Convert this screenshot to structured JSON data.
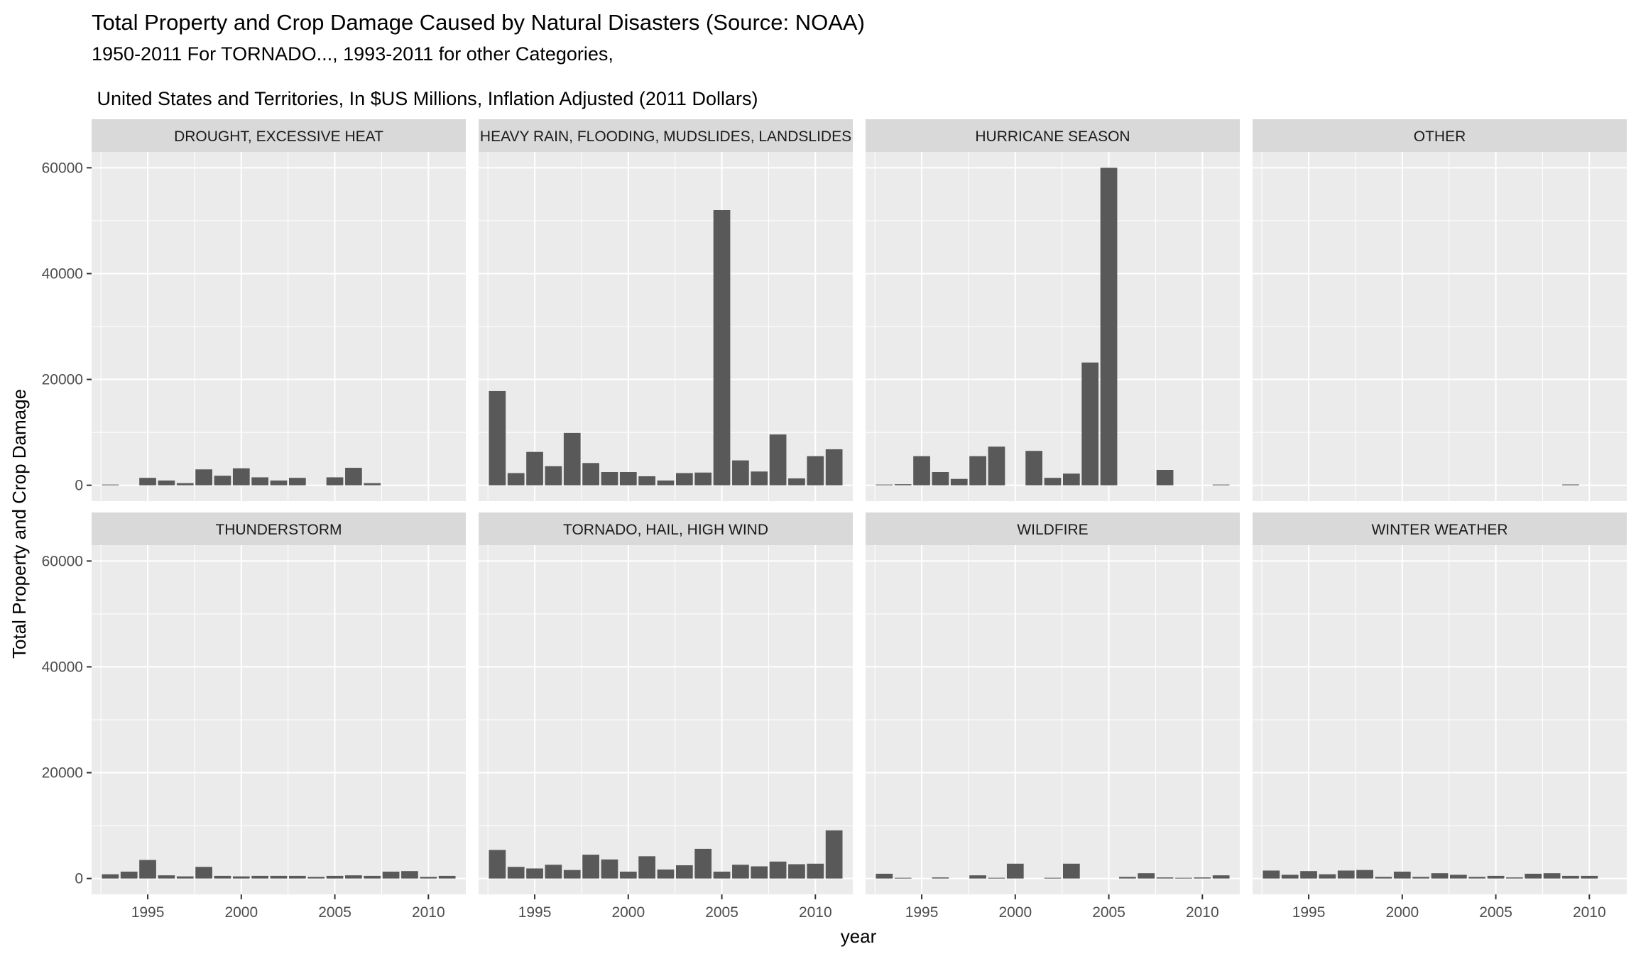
{
  "title": "Total Property and Crop Damage Caused by Natural Disasters (Source: NOAA)",
  "subtitle_line1": "1950-2011 For TORNADO..., 1993-2011 for other Categories,",
  "subtitle_line2": " United States and Territories, In $US Millions, Inflation Adjusted (2011 Dollars)",
  "colors": {
    "panel_bg": "#ebebeb",
    "strip_bg": "#d9d9d9",
    "grid": "#ffffff",
    "bar": "#595959",
    "text": "#000000",
    "tick_text": "#4d4d4d"
  },
  "chart_data": {
    "type": "bar",
    "facet_layout": "4 columns x 2 rows",
    "xlabel": "year",
    "ylabel": "Total Property and Crop Damage",
    "xlim": [
      1992,
      2012
    ],
    "ylim": [
      -3000,
      63000
    ],
    "x_ticks": [
      1995,
      2000,
      2005,
      2010
    ],
    "y_ticks": [
      0,
      20000,
      40000,
      60000
    ],
    "grid": true,
    "legend": "none",
    "years": [
      1993,
      1994,
      1995,
      1996,
      1997,
      1998,
      1999,
      2000,
      2001,
      2002,
      2003,
      2004,
      2005,
      2006,
      2007,
      2008,
      2009,
      2010,
      2011
    ],
    "panels": [
      {
        "label": "DROUGHT, EXCESSIVE HEAT",
        "values": [
          100,
          0,
          1400,
          900,
          400,
          3000,
          1800,
          3200,
          1500,
          900,
          1400,
          0,
          1500,
          3300,
          400,
          0,
          0,
          0,
          0
        ]
      },
      {
        "label": "HEAVY RAIN, FLOODING, MUDSLIDES, LANDSLIDES",
        "values": [
          17800,
          2300,
          6300,
          3600,
          9900,
          4200,
          2500,
          2500,
          1700,
          900,
          2300,
          2400,
          52000,
          4700,
          2600,
          9600,
          1300,
          5500,
          6800
        ]
      },
      {
        "label": "HURRICANE SEASON",
        "values": [
          100,
          200,
          5500,
          2500,
          1200,
          5500,
          7300,
          0,
          6500,
          1400,
          2200,
          23200,
          60000,
          0,
          0,
          2900,
          0,
          0,
          100
        ]
      },
      {
        "label": "OTHER",
        "values": [
          0,
          0,
          0,
          0,
          0,
          0,
          0,
          0,
          0,
          0,
          0,
          0,
          0,
          0,
          0,
          0,
          150,
          0,
          0
        ]
      },
      {
        "label": "THUNDERSTORM",
        "values": [
          800,
          1300,
          3500,
          600,
          400,
          2200,
          500,
          400,
          500,
          500,
          500,
          300,
          500,
          600,
          500,
          1300,
          1400,
          300,
          500
        ]
      },
      {
        "label": "TORNADO, HAIL, HIGH WIND",
        "values": [
          5400,
          2200,
          1900,
          2600,
          1600,
          4500,
          3600,
          1300,
          4200,
          1700,
          2500,
          5600,
          1300,
          2600,
          2300,
          3200,
          2700,
          2800,
          9100
        ]
      },
      {
        "label": "WILDFIRE",
        "values": [
          900,
          100,
          0,
          200,
          0,
          600,
          100,
          2800,
          0,
          100,
          2800,
          0,
          0,
          300,
          1000,
          200,
          100,
          200,
          600
        ]
      },
      {
        "label": "WINTER WEATHER",
        "values": [
          1500,
          700,
          1400,
          800,
          1500,
          1600,
          300,
          1300,
          300,
          1000,
          700,
          300,
          500,
          200,
          900,
          1000,
          500,
          500,
          0
        ]
      }
    ]
  }
}
